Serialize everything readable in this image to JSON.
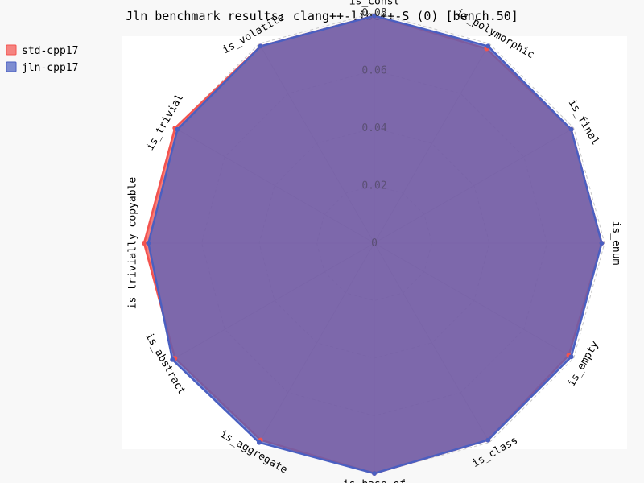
{
  "chart_data": {
    "type": "radar",
    "title": "Jln benchmark results: clang++-libc++-S (0) [bench.50]",
    "axes": [
      "is_const",
      "is_polymorphic",
      "is_final",
      "is_enum",
      "is_empty",
      "is_class",
      "is_base_of",
      "is_aggregate",
      "is_abstract",
      "is_trivially_copyable",
      "is_trivial",
      "is_volatile"
    ],
    "rlim": [
      0,
      0.08
    ],
    "ticks": [
      "0",
      "0.02",
      "0.04",
      "0.06",
      "0.08"
    ],
    "tick_values": [
      0,
      0.02,
      0.04,
      0.06,
      0.08
    ],
    "grid": true,
    "legend_position": "top-left",
    "series": [
      {
        "name": "std-cpp17",
        "color": "#f3534f",
        "values": [
          0.079,
          0.078,
          0.079,
          0.079,
          0.078,
          0.079,
          0.08,
          0.079,
          0.08,
          0.08,
          0.08,
          0.079
        ]
      },
      {
        "name": "jln-cpp17",
        "color": "#4a5fc1",
        "values": [
          0.079,
          0.079,
          0.079,
          0.079,
          0.079,
          0.079,
          0.08,
          0.08,
          0.081,
          0.0785,
          0.079,
          0.079
        ]
      }
    ]
  }
}
